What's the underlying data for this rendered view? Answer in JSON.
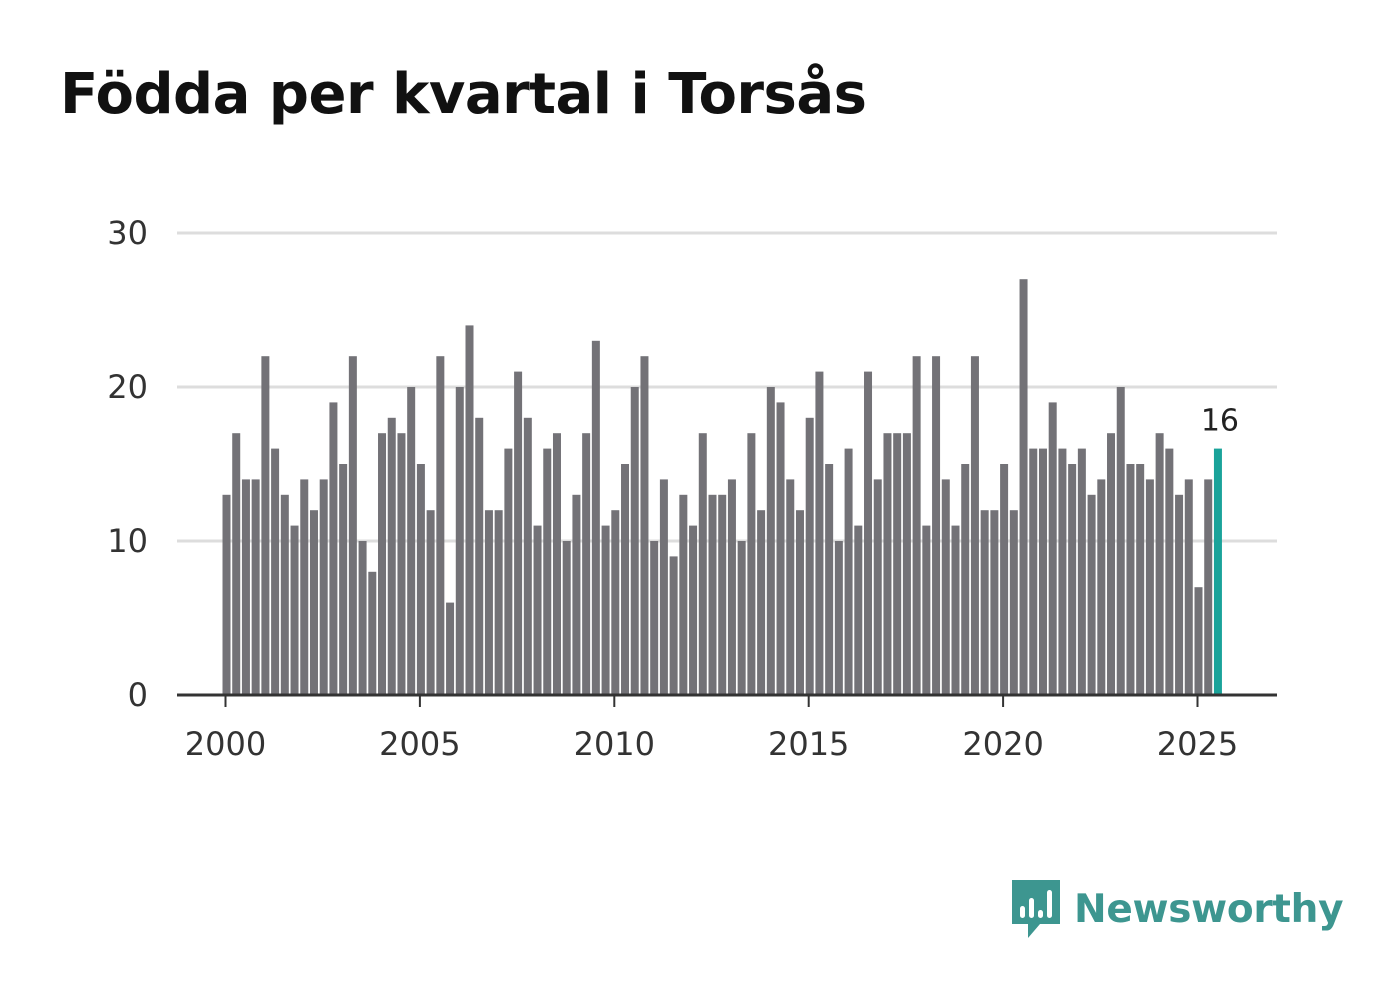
{
  "header": {
    "title": "Födda per kvartal i Torsås"
  },
  "brand": {
    "name": "Newsworthy",
    "color": "#3d9690"
  },
  "colors": {
    "bar": "#737277",
    "highlight": "#1aa39a",
    "grid": "#dddddd",
    "axis": "#333333"
  },
  "chart_data": {
    "type": "bar",
    "title": "Födda per kvartal i Torsås",
    "xlabel": "",
    "ylabel": "",
    "ylim": [
      0,
      30
    ],
    "yticks": [
      0,
      10,
      20,
      30
    ],
    "xticks": [
      "2000",
      "2005",
      "2010",
      "2015",
      "2020",
      "2025"
    ],
    "start_year": 2000,
    "grid": true,
    "highlight_label": "16",
    "categories": [
      "2000K1",
      "2000K2",
      "2000K3",
      "2000K4",
      "2001K1",
      "2001K2",
      "2001K3",
      "2001K4",
      "2002K1",
      "2002K2",
      "2002K3",
      "2002K4",
      "2003K1",
      "2003K2",
      "2003K3",
      "2003K4",
      "2004K1",
      "2004K2",
      "2004K3",
      "2004K4",
      "2005K1",
      "2005K2",
      "2005K3",
      "2005K4",
      "2006K1",
      "2006K2",
      "2006K3",
      "2006K4",
      "2007K1",
      "2007K2",
      "2007K3",
      "2007K4",
      "2008K1",
      "2008K2",
      "2008K3",
      "2008K4",
      "2009K1",
      "2009K2",
      "2009K3",
      "2009K4",
      "2010K1",
      "2010K2",
      "2010K3",
      "2010K4",
      "2011K1",
      "2011K2",
      "2011K3",
      "2011K4",
      "2012K1",
      "2012K2",
      "2012K3",
      "2012K4",
      "2013K1",
      "2013K2",
      "2013K3",
      "2013K4",
      "2014K1",
      "2014K2",
      "2014K3",
      "2014K4",
      "2015K1",
      "2015K2",
      "2015K3",
      "2015K4",
      "2016K1",
      "2016K2",
      "2016K3",
      "2016K4",
      "2017K1",
      "2017K2",
      "2017K3",
      "2017K4",
      "2018K1",
      "2018K2",
      "2018K3",
      "2018K4",
      "2019K1",
      "2019K2",
      "2019K3",
      "2019K4",
      "2020K1",
      "2020K2",
      "2020K3",
      "2020K4",
      "2021K1",
      "2021K2",
      "2021K3",
      "2021K4",
      "2022K1",
      "2022K2",
      "2022K3",
      "2022K4",
      "2023K1",
      "2023K2",
      "2023K3",
      "2023K4",
      "2024K1",
      "2024K2",
      "2024K3",
      "2024K4",
      "2025K1",
      "2025K2",
      "2025K3"
    ],
    "values": [
      13,
      17,
      14,
      14,
      22,
      16,
      13,
      11,
      14,
      12,
      14,
      19,
      15,
      22,
      10,
      8,
      17,
      18,
      17,
      20,
      15,
      12,
      22,
      6,
      20,
      24,
      18,
      12,
      12,
      16,
      21,
      18,
      11,
      16,
      17,
      10,
      13,
      17,
      23,
      11,
      12,
      15,
      20,
      22,
      10,
      14,
      9,
      13,
      11,
      17,
      13,
      13,
      14,
      10,
      17,
      12,
      20,
      19,
      14,
      12,
      18,
      21,
      15,
      10,
      16,
      11,
      21,
      14,
      17,
      17,
      17,
      22,
      11,
      22,
      14,
      11,
      15,
      22,
      12,
      12,
      15,
      12,
      27,
      16,
      16,
      19,
      16,
      15,
      16,
      13,
      14,
      17,
      20,
      15,
      15,
      14,
      17,
      16,
      13,
      14,
      7,
      14,
      16
    ]
  }
}
